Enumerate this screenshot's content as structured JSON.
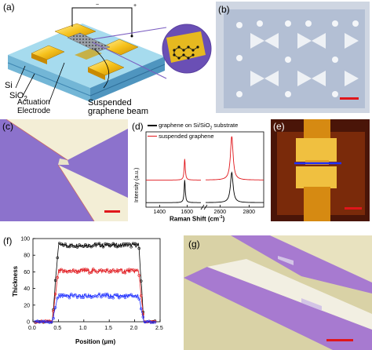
{
  "panels": {
    "a": {
      "label": "(a)",
      "layers": {
        "si": "Si",
        "sio2": "SiO",
        "sio2_sub": "2"
      },
      "electrode_line1": "Actuation",
      "electrode_line2": "Electrode",
      "beam_line1": "Suspended",
      "beam_line2": "graphene beam"
    },
    "b": {
      "label": "(b)"
    },
    "c": {
      "label": "(c)"
    },
    "d": {
      "label": "(d)"
    },
    "e": {
      "label": "(e)"
    },
    "f": {
      "label": "(f)"
    },
    "g": {
      "label": "(g)"
    }
  },
  "colors": {
    "purple": "#8a6fd0",
    "gold": "#f0b400",
    "red": "#e0161b",
    "blue": "#2030ff",
    "black": "#000000"
  },
  "chart_data": [
    {
      "id": "d",
      "type": "line",
      "xlabel": "Raman Shift (cm",
      "xlabel_sup": "-1",
      "xlabel_end": ")",
      "ylabel": "Intensity (a.u.)",
      "x_ticks": [
        "1400",
        "1600",
        "2600",
        "2800"
      ],
      "x_break": true,
      "legend_position": "top",
      "series": [
        {
          "name": "graphene on Si/SiO",
          "name_sub": "2",
          "name_end": " substrate",
          "color": "#000000",
          "baseline": 0.06,
          "peaks": [
            {
              "x": 1582,
              "h": 0.3
            },
            {
              "x": 2680,
              "h": 0.4
            }
          ]
        },
        {
          "name": "suspended graphene",
          "color": "#e0161b",
          "baseline": 0.36,
          "peaks": [
            {
              "x": 1582,
              "h": 0.28
            },
            {
              "x": 2680,
              "h": 0.58
            }
          ]
        }
      ]
    },
    {
      "id": "f",
      "type": "line",
      "xlabel": "Position (μm)",
      "ylabel": "Thickness",
      "xlim": [
        0,
        2.5
      ],
      "ylim": [
        0,
        100
      ],
      "x_ticks": [
        "0.0",
        "0.5",
        "1.0",
        "1.5",
        "2.0",
        "2.5"
      ],
      "y_ticks": [
        "0",
        "20",
        "40",
        "60",
        "80",
        "100"
      ],
      "grid": false,
      "series": [
        {
          "color": "#000000",
          "plateau": 92
        },
        {
          "color": "#e0161b",
          "plateau": 61
        },
        {
          "color": "#2030ff",
          "plateau": 31
        }
      ]
    }
  ]
}
